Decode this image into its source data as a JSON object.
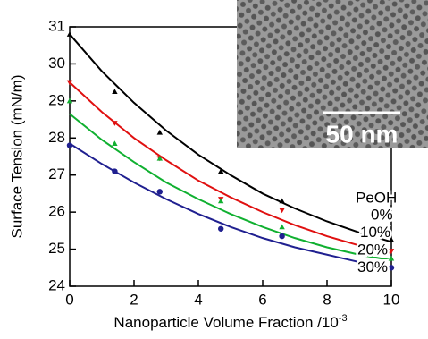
{
  "chart_data": {
    "type": "scatter",
    "x_label": "Nanoparticle Volume Fraction /10",
    "x_label_exponent": "-3",
    "y_label": "Surface Tension (mN/m)",
    "xlim": [
      0,
      10
    ],
    "xticks": [
      0,
      2,
      4,
      6,
      8,
      10
    ],
    "ylim": [
      24,
      31
    ],
    "yticks": [
      24,
      25,
      26,
      27,
      28,
      29,
      30,
      31
    ],
    "legend_title": "PeOH",
    "x": [
      0,
      1.4,
      2.8,
      4.7,
      6.6,
      10
    ],
    "fit_x": [
      0,
      1,
      2,
      3,
      4,
      5,
      6,
      7,
      8,
      9,
      10
    ],
    "series": [
      {
        "name": "0%",
        "color": "#000000",
        "marker": "triangle-up",
        "values": [
          30.8,
          29.25,
          28.15,
          27.1,
          26.3,
          25.25
        ],
        "fit": [
          30.8,
          29.8,
          28.95,
          28.2,
          27.55,
          27.0,
          26.5,
          26.1,
          25.75,
          25.45,
          25.2
        ]
      },
      {
        "name": "10%",
        "color": "#e01010",
        "marker": "triangle-down",
        "values": [
          29.5,
          28.4,
          27.45,
          26.35,
          26.05,
          24.95
        ],
        "fit": [
          29.5,
          28.7,
          28.0,
          27.4,
          26.85,
          26.4,
          26.0,
          25.65,
          25.35,
          25.1,
          24.9
        ]
      },
      {
        "name": "20%",
        "color": "#10b030",
        "marker": "triangle-up",
        "values": [
          29.0,
          27.85,
          27.45,
          26.3,
          25.6,
          24.75
        ],
        "fit": [
          28.65,
          27.95,
          27.35,
          26.8,
          26.35,
          25.95,
          25.6,
          25.3,
          25.05,
          24.85,
          24.7
        ]
      },
      {
        "name": "30%",
        "color": "#202090",
        "marker": "circle",
        "values": [
          27.8,
          27.1,
          26.55,
          25.55,
          25.35,
          24.5
        ],
        "fit": [
          27.85,
          27.3,
          26.8,
          26.35,
          25.95,
          25.6,
          25.3,
          25.05,
          24.85,
          24.65,
          24.5
        ]
      }
    ],
    "inset": {
      "scale_bar_label": "50 nm"
    }
  }
}
